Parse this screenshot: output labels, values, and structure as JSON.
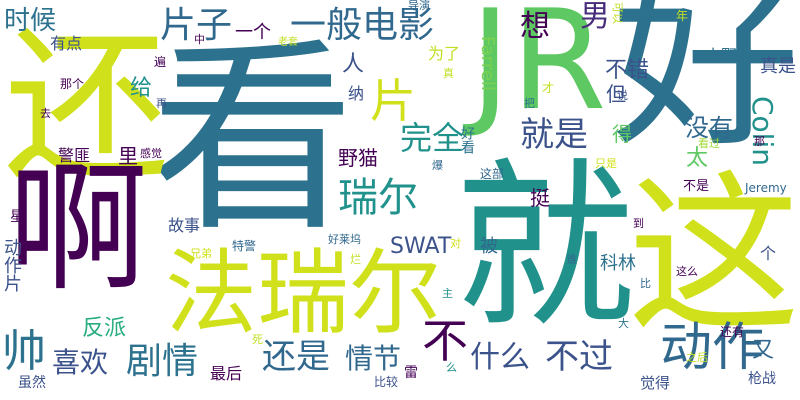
{
  "word_cloud": {
    "background": "#ffffff",
    "palette": [
      "#440154",
      "#3b528b",
      "#21918c",
      "#5ec962",
      "#fde725",
      "#d0e11c",
      "#2c728e",
      "#27ad81",
      "#472d7b"
    ],
    "words": [
      {
        "text": "看",
        "color": "#2c728e"
      },
      {
        "text": "好",
        "color": "#2c728e"
      },
      {
        "text": "就",
        "color": "#21918c"
      },
      {
        "text": "这",
        "color": "#d0e11c"
      },
      {
        "text": "还",
        "color": "#d0e11c"
      },
      {
        "text": "啊",
        "color": "#440154"
      },
      {
        "text": "JR",
        "color": "#5ec962"
      },
      {
        "text": "法瑞尔",
        "color": "#d0e11c"
      },
      {
        "text": "动作",
        "color": "#31688e"
      },
      {
        "text": "一般",
        "color": "#31688e"
      },
      {
        "text": "电影",
        "color": "#31688e"
      },
      {
        "text": "片子",
        "color": "#31688e"
      },
      {
        "text": "片",
        "color": "#d0e11c"
      },
      {
        "text": "瑞尔",
        "color": "#21918c"
      },
      {
        "text": "就是",
        "color": "#3b528b"
      },
      {
        "text": "完全",
        "color": "#21918c"
      },
      {
        "text": "剧情",
        "color": "#2c728e"
      },
      {
        "text": "还是",
        "color": "#31688e"
      },
      {
        "text": "喜欢",
        "color": "#3b528b"
      },
      {
        "text": "帅",
        "color": "#2c728e"
      },
      {
        "text": "不",
        "color": "#440154"
      },
      {
        "text": "什么",
        "color": "#3b528b"
      },
      {
        "text": "不过",
        "color": "#3b528b"
      },
      {
        "text": "时候",
        "color": "#2c728e"
      },
      {
        "text": "Colin",
        "color": "#21918c"
      },
      {
        "text": "男",
        "color": "#472d7b"
      },
      {
        "text": "想",
        "color": "#440154"
      },
      {
        "text": "情节",
        "color": "#31688e"
      },
      {
        "text": "SWAT",
        "color": "#3b528b"
      },
      {
        "text": "野猫",
        "color": "#440154"
      },
      {
        "text": "没有",
        "color": "#31688e"
      },
      {
        "text": "不错",
        "color": "#3b528b"
      },
      {
        "text": "真是",
        "color": "#3b528b"
      },
      {
        "text": "小野",
        "color": "#2c728e"
      },
      {
        "text": "Farrell",
        "color": "#7ad151"
      },
      {
        "text": "给",
        "color": "#21918c"
      },
      {
        "text": "人",
        "color": "#3b528b"
      },
      {
        "text": "一个",
        "color": "#440154"
      },
      {
        "text": "有点",
        "color": "#3b528b"
      },
      {
        "text": "反派",
        "color": "#27ad81"
      },
      {
        "text": "最后",
        "color": "#440154"
      },
      {
        "text": "故事",
        "color": "#3b528b"
      },
      {
        "text": "科林",
        "color": "#2c728e"
      },
      {
        "text": "太",
        "color": "#5ec962"
      },
      {
        "text": "挺",
        "color": "#440154"
      },
      {
        "text": "但",
        "color": "#3b528b"
      },
      {
        "text": "得",
        "color": "#5ec962"
      },
      {
        "text": "里",
        "color": "#440154"
      },
      {
        "text": "又",
        "color": "#31688e"
      },
      {
        "text": "被",
        "color": "#31688e"
      },
      {
        "text": "个",
        "color": "#3b528b"
      },
      {
        "text": "雷",
        "color": "#440154"
      },
      {
        "text": "为了",
        "color": "#c2df23"
      },
      {
        "text": "好看",
        "color": "#2c728e"
      },
      {
        "text": "纳",
        "color": "#3b528b"
      },
      {
        "text": "动作片",
        "color": "#3b528b"
      },
      {
        "text": "警匪",
        "color": "#440154"
      },
      {
        "text": "感觉",
        "color": "#440154"
      },
      {
        "text": "那个",
        "color": "#440154"
      },
      {
        "text": "去",
        "color": "#440154"
      },
      {
        "text": "星",
        "color": "#440154"
      },
      {
        "text": "虽然",
        "color": "#3b528b"
      },
      {
        "text": "比较",
        "color": "#3b528b"
      },
      {
        "text": "觉得",
        "color": "#3b528b"
      },
      {
        "text": "枪战",
        "color": "#3b528b"
      },
      {
        "text": "还有",
        "color": "#440154"
      },
      {
        "text": "这么",
        "color": "#440154"
      },
      {
        "text": "Jeremy",
        "color": "#31688e"
      },
      {
        "text": "不是",
        "color": "#440154"
      },
      {
        "text": "导演",
        "color": "#31688e"
      },
      {
        "text": "年",
        "color": "#c2df23"
      },
      {
        "text": "可以",
        "color": "#c2df23"
      },
      {
        "text": "特警",
        "color": "#31688e"
      },
      {
        "text": "好莱坞",
        "color": "#31688e"
      },
      {
        "text": "兄弟",
        "color": "#d0e11c"
      },
      {
        "text": "这部",
        "color": "#31688e"
      },
      {
        "text": "才",
        "color": "#c2df23"
      },
      {
        "text": "说",
        "color": "#3b528b"
      },
      {
        "text": "看过",
        "color": "#a0da39"
      },
      {
        "text": "那",
        "color": "#440154"
      },
      {
        "text": "只是",
        "color": "#d0e11c"
      },
      {
        "text": "到",
        "color": "#440154"
      },
      {
        "text": "谁",
        "color": "#31688e"
      },
      {
        "text": "比",
        "color": "#31688e"
      },
      {
        "text": "大",
        "color": "#2c728e"
      },
      {
        "text": "之后",
        "color": "#c2df23"
      },
      {
        "text": "主",
        "color": "#21918c"
      },
      {
        "text": "对",
        "color": "#d0e11c"
      },
      {
        "text": "死",
        "color": "#c2df23"
      },
      {
        "text": "再",
        "color": "#3b528b"
      },
      {
        "text": "遍",
        "color": "#440154"
      },
      {
        "text": "中",
        "color": "#440154"
      },
      {
        "text": "老套",
        "color": "#c2df23"
      },
      {
        "text": "真",
        "color": "#c2df23"
      },
      {
        "text": "把",
        "color": "#2c728e"
      },
      {
        "text": "爆",
        "color": "#31688e"
      },
      {
        "text": "烂",
        "color": "#c2df23"
      },
      {
        "text": "么",
        "color": "#21918c"
      }
    ]
  }
}
